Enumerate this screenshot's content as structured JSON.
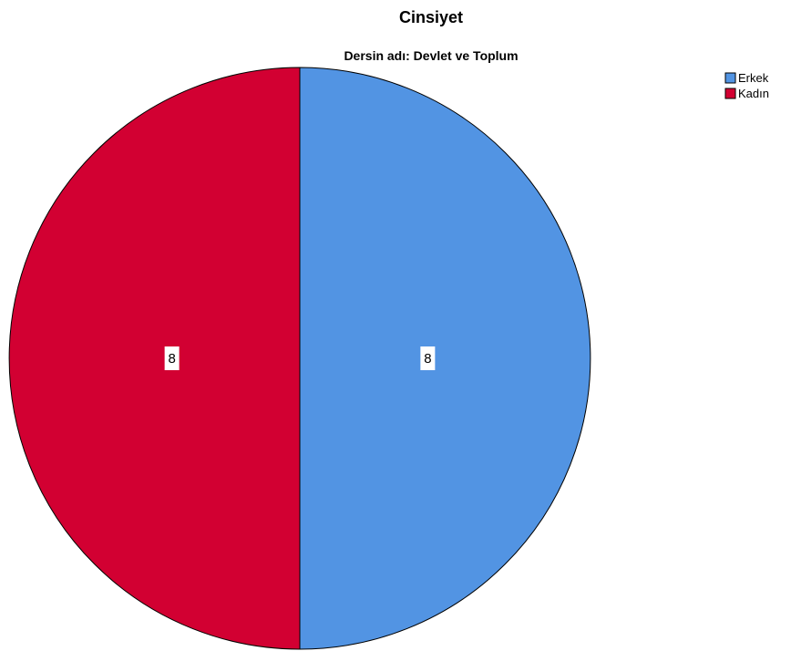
{
  "chart_data": {
    "type": "pie",
    "title": "Cinsiyet",
    "subtitle": "Dersin adı: Devlet ve Toplum",
    "categories": [
      "Erkek",
      "Kadın"
    ],
    "values": [
      8,
      8
    ],
    "colors": [
      "#5294E3",
      "#D20032"
    ],
    "data_labels": [
      "8",
      "8"
    ],
    "legend_position": "top-right",
    "start_angle": "12 o'clock, clockwise"
  }
}
